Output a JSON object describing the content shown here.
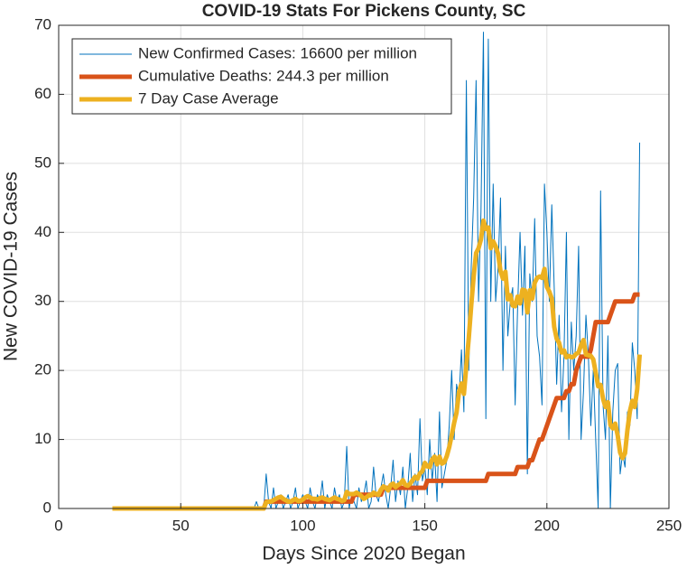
{
  "chart_data": {
    "type": "line",
    "title": "COVID-19 Stats For Pickens County, SC",
    "xlabel": "Days Since 2020 Began",
    "ylabel": "New COVID-19 Cases",
    "xlim": [
      0,
      250
    ],
    "xticks": [
      0,
      50,
      100,
      150,
      200,
      250
    ],
    "ylim": [
      0,
      70
    ],
    "yticks": [
      0,
      10,
      20,
      30,
      40,
      50,
      60,
      70
    ],
    "grid": true,
    "legend_position": "upper-left",
    "x": [
      22,
      23,
      24,
      25,
      26,
      27,
      28,
      29,
      30,
      31,
      32,
      33,
      34,
      35,
      36,
      37,
      38,
      39,
      40,
      41,
      42,
      43,
      44,
      45,
      46,
      47,
      48,
      49,
      50,
      51,
      52,
      53,
      54,
      55,
      56,
      57,
      58,
      59,
      60,
      61,
      62,
      63,
      64,
      65,
      66,
      67,
      68,
      69,
      70,
      71,
      72,
      73,
      74,
      75,
      76,
      77,
      78,
      79,
      80,
      81,
      82,
      83,
      84,
      85,
      86,
      87,
      88,
      89,
      90,
      91,
      92,
      93,
      94,
      95,
      96,
      97,
      98,
      99,
      100,
      101,
      102,
      103,
      104,
      105,
      106,
      107,
      108,
      109,
      110,
      111,
      112,
      113,
      114,
      115,
      116,
      117,
      118,
      119,
      120,
      121,
      122,
      123,
      124,
      125,
      126,
      127,
      128,
      129,
      130,
      131,
      132,
      133,
      134,
      135,
      136,
      137,
      138,
      139,
      140,
      141,
      142,
      143,
      144,
      145,
      146,
      147,
      148,
      149,
      150,
      151,
      152,
      153,
      154,
      155,
      156,
      157,
      158,
      159,
      160,
      161,
      162,
      163,
      164,
      165,
      166,
      167,
      168,
      169,
      170,
      171,
      172,
      173,
      174,
      175,
      176,
      177,
      178,
      179,
      180,
      181,
      182,
      183,
      184,
      185,
      186,
      187,
      188,
      189,
      190,
      191,
      192,
      193,
      194,
      195,
      196,
      197,
      198,
      199,
      200,
      201,
      202,
      203,
      204,
      205,
      206,
      207,
      208,
      209,
      210,
      211,
      212,
      213,
      214,
      215,
      216,
      217,
      218,
      219,
      220,
      221,
      222,
      223,
      224,
      225,
      226,
      227,
      228,
      229,
      230,
      231,
      232,
      233,
      234,
      235,
      236,
      237,
      238
    ],
    "series": [
      {
        "name": "New Confirmed Cases: 16600 per million",
        "color": "#0072bd",
        "width": 1,
        "values": [
          0,
          0,
          0,
          0,
          0,
          0,
          0,
          0,
          0,
          0,
          0,
          0,
          0,
          0,
          0,
          0,
          0,
          0,
          0,
          0,
          0,
          0,
          0,
          0,
          0,
          0,
          0,
          0,
          0,
          0,
          0,
          0,
          0,
          0,
          0,
          0,
          0,
          0,
          0,
          0,
          0,
          0,
          0,
          0,
          0,
          0,
          0,
          0,
          0,
          0,
          0,
          0,
          0,
          0,
          0,
          0,
          0,
          0,
          0,
          1,
          0,
          0,
          0,
          5,
          1,
          0,
          3,
          0,
          1,
          2,
          0,
          1,
          2,
          0,
          1,
          3,
          0,
          1,
          2,
          1,
          0,
          3,
          1,
          0,
          2,
          1,
          4,
          0,
          2,
          1,
          0,
          3,
          1,
          2,
          0,
          1,
          9,
          0,
          2,
          1,
          0,
          3,
          1,
          2,
          4,
          0,
          1,
          6,
          2,
          1,
          3,
          5,
          2,
          0,
          3,
          7,
          1,
          4,
          2,
          6,
          0,
          3,
          8,
          1,
          5,
          2,
          13,
          4,
          6,
          2,
          10,
          4,
          8,
          1,
          14,
          3,
          5,
          7,
          12,
          20,
          10,
          18,
          16,
          23,
          14,
          62,
          20,
          35,
          45,
          62,
          30,
          43,
          69,
          13,
          68,
          30,
          47,
          30,
          35,
          45,
          20,
          38,
          25,
          30,
          32,
          15,
          29,
          40,
          28,
          38,
          5,
          34,
          30,
          42,
          25,
          22,
          15,
          47,
          40,
          30,
          44,
          32,
          18,
          28,
          14,
          22,
          40,
          10,
          27,
          20,
          25,
          38,
          10,
          17,
          28,
          22,
          12,
          20,
          10,
          0,
          46,
          15,
          10,
          25,
          0,
          14,
          20,
          21,
          5,
          8,
          6,
          14,
          12,
          24,
          20,
          13,
          53
        ]
      },
      {
        "name": "Cumulative Deaths: 244.3 per million",
        "color": "#d95319",
        "width": 5,
        "values": [
          0,
          0,
          0,
          0,
          0,
          0,
          0,
          0,
          0,
          0,
          0,
          0,
          0,
          0,
          0,
          0,
          0,
          0,
          0,
          0,
          0,
          0,
          0,
          0,
          0,
          0,
          0,
          0,
          0,
          0,
          0,
          0,
          0,
          0,
          0,
          0,
          0,
          0,
          0,
          0,
          0,
          0,
          0,
          0,
          0,
          0,
          0,
          0,
          0,
          0,
          0,
          0,
          0,
          0,
          0,
          0,
          0,
          0,
          0,
          0,
          0,
          0,
          0,
          1,
          1,
          1,
          1,
          1,
          1,
          1,
          1,
          1,
          1,
          1,
          1,
          1,
          1,
          1,
          1,
          1,
          1,
          1,
          1,
          1,
          1,
          1,
          1,
          1,
          1,
          1,
          1,
          1,
          1,
          1,
          1,
          1,
          1,
          1,
          1,
          2,
          2,
          2,
          2,
          2,
          2,
          2,
          2,
          2,
          2,
          2,
          2,
          3,
          3,
          3,
          3,
          3,
          3,
          3,
          3,
          3,
          3,
          3,
          3,
          3,
          3,
          3,
          3,
          3,
          3,
          4,
          4,
          4,
          4,
          4,
          4,
          4,
          4,
          4,
          4,
          4,
          4,
          4,
          4,
          4,
          4,
          4,
          4,
          4,
          4,
          4,
          4,
          4,
          4,
          4,
          5,
          5,
          5,
          5,
          5,
          5,
          5,
          5,
          5,
          5,
          5,
          5,
          6,
          6,
          6,
          6,
          6,
          7,
          7,
          8,
          9,
          10,
          10,
          11,
          12,
          13,
          14,
          15,
          16,
          16,
          16,
          16,
          17,
          17,
          18,
          18,
          20,
          21,
          22,
          22,
          22,
          22,
          23,
          25,
          27,
          27,
          27,
          27,
          27,
          27,
          28,
          29,
          30,
          30,
          30,
          30,
          30,
          30,
          30,
          30,
          31,
          31,
          31
        ]
      },
      {
        "name": "7 Day Case Average",
        "color": "#edb120",
        "width": 5,
        "values": [
          0,
          0,
          0,
          0,
          0,
          0,
          0,
          0,
          0,
          0,
          0,
          0,
          0,
          0,
          0,
          0,
          0,
          0,
          0,
          0,
          0,
          0,
          0,
          0,
          0,
          0,
          0,
          0,
          0,
          0,
          0,
          0,
          0,
          0,
          0,
          0,
          0,
          0,
          0,
          0,
          0,
          0,
          0,
          0,
          0,
          0,
          0,
          0,
          0,
          0,
          0,
          0,
          0,
          0,
          0,
          0,
          0,
          0,
          0,
          0,
          0,
          0,
          0,
          0.9,
          1,
          1,
          1.2,
          1.4,
          1.6,
          1.7,
          1.4,
          1.2,
          1,
          1,
          1.2,
          1.4,
          1.1,
          1.1,
          1.3,
          1.6,
          1.8,
          1.6,
          1.4,
          1.4,
          1.3,
          1.5,
          1.6,
          1.4,
          1.3,
          1.2,
          1.4,
          1.6,
          1.4,
          1.3,
          1.1,
          1.2,
          2.4,
          2.1,
          2.1,
          2.1,
          2.3,
          2.1,
          1.8,
          1.4,
          1.6,
          1.9,
          1.9,
          2.3,
          2.1,
          2,
          2.7,
          3.2,
          3,
          2.6,
          3.4,
          3.6,
          3.1,
          3.4,
          3.6,
          4.1,
          3.4,
          3.3,
          3.6,
          4.1,
          4.6,
          4.3,
          5.1,
          5.4,
          6.6,
          6.1,
          6,
          7.1,
          7.5,
          6.4,
          7.5,
          6.5,
          6.7,
          7.6,
          8.9,
          10.6,
          12.4,
          13.9,
          16.9,
          18.1,
          16.6,
          20.7,
          24.7,
          29.4,
          33.6,
          37,
          37.7,
          39,
          41.7,
          40.5,
          40.7,
          37.7,
          38.7,
          38,
          36.9,
          34.4,
          33.3,
          34.3,
          30.3,
          30.9,
          29.4,
          29.3,
          30.7,
          29.7,
          31.7,
          31.6,
          28.4,
          31.6,
          30.4,
          32.7,
          33.4,
          33.6,
          33.4,
          34.7,
          32.1,
          31.4,
          30.4,
          26.3,
          24.6,
          24,
          22.6,
          22.9,
          21.9,
          22.1,
          21.9,
          22,
          22.4,
          22.6,
          23.7,
          24.4,
          22.3,
          22.2,
          22.1,
          21.6,
          19.7,
          17.7,
          17.9,
          15.9,
          14.7,
          15.4,
          12.1,
          11.6,
          12.3,
          10.6,
          8.1,
          7.3,
          8,
          11.4,
          14.1,
          15.6,
          14.7,
          17.3,
          22.3
        ]
      }
    ]
  }
}
